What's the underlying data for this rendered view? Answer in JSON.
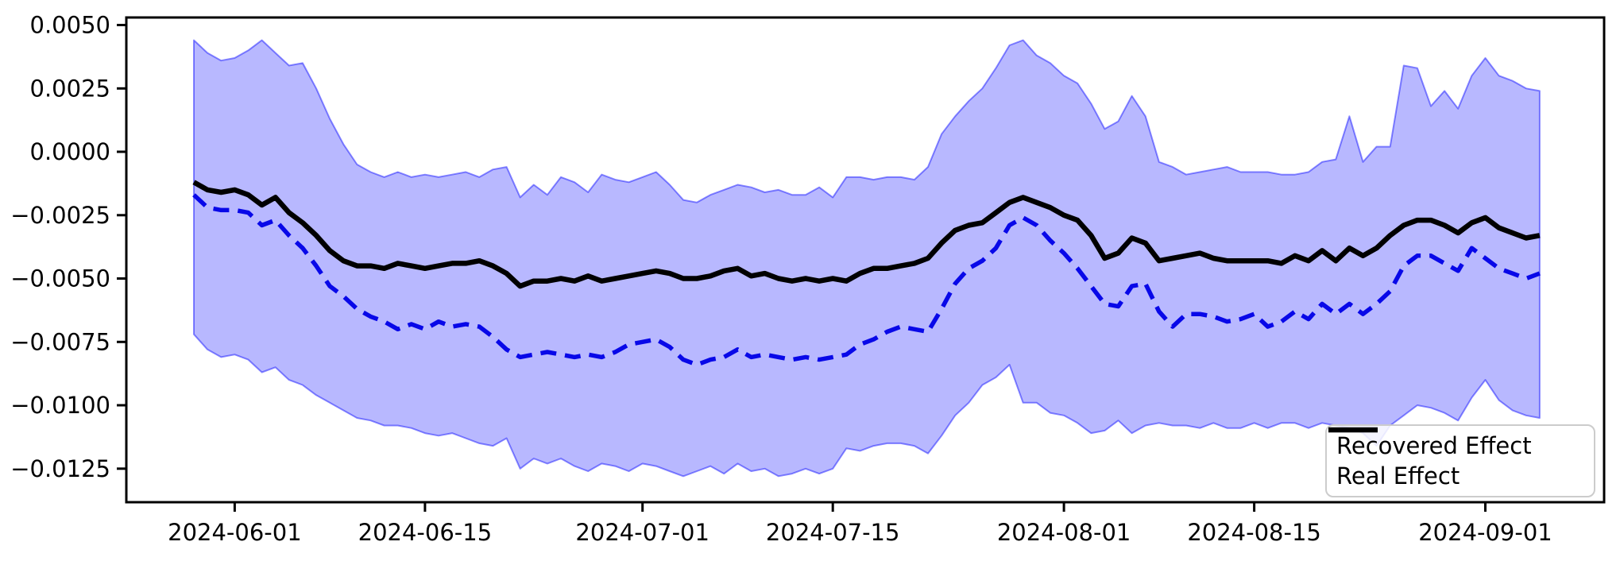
{
  "figure": {
    "background": "#ffffff"
  },
  "axes": {
    "spine_color": "#000000",
    "spine_width": 3,
    "tick_length": 12,
    "tick_width": 3,
    "font_color": "#000000",
    "tick_font_size": 29,
    "ylim": [
      -0.013824,
      0.005298
    ],
    "xlim_days": [
      -4.97,
      103.74
    ],
    "y_ticks": [
      {
        "value": 0.005,
        "label": "0.0050"
      },
      {
        "value": 0.0025,
        "label": "0.0025"
      },
      {
        "value": 0.0,
        "label": "0.0000"
      },
      {
        "value": -0.0025,
        "label": "−0.0025"
      },
      {
        "value": -0.005,
        "label": "−0.0050"
      },
      {
        "value": -0.0075,
        "label": "−0.0075"
      },
      {
        "value": -0.01,
        "label": "−0.0100"
      },
      {
        "value": -0.0125,
        "label": "−0.0125"
      }
    ],
    "x_ticks": [
      {
        "day": 3,
        "label": "2024-06-01"
      },
      {
        "day": 17,
        "label": "2024-06-15"
      },
      {
        "day": 33,
        "label": "2024-07-01"
      },
      {
        "day": 47,
        "label": "2024-07-15"
      },
      {
        "day": 64,
        "label": "2024-08-01"
      },
      {
        "day": 78,
        "label": "2024-08-15"
      },
      {
        "day": 95,
        "label": "2024-09-01"
      }
    ]
  },
  "chart_data": {
    "type": "line",
    "title": "",
    "xlabel": "",
    "ylabel": "",
    "grid": false,
    "legend_position": "lower right",
    "x_start_date": "2024-05-29",
    "x_end_date": "2024-09-05",
    "x_frequency": "daily",
    "n_points": 100,
    "value_scale": 0.0001,
    "series": [
      {
        "name": "Recovered Effect",
        "color": "#0808e8",
        "line_style": "dashed",
        "line_width": 5.5,
        "dash_array": "20 11",
        "values_e4": [
          -17,
          -22,
          -23,
          -23,
          -24,
          -29,
          -27,
          -33,
          -38,
          -45,
          -53,
          -57,
          -62,
          -65,
          -67,
          -70,
          -68,
          -70,
          -67,
          -69,
          -68,
          -69,
          -73,
          -78,
          -81,
          -80,
          -79,
          -80,
          -81,
          -80,
          -81,
          -79,
          -76,
          -75,
          -74,
          -77,
          -82,
          -84,
          -82,
          -81,
          -78,
          -81,
          -80,
          -81,
          -82,
          -81,
          -82,
          -81,
          -80,
          -76,
          -74,
          -71,
          -69,
          -70,
          -71,
          -62,
          -52,
          -46,
          -43,
          -38,
          -29,
          -26,
          -29,
          -35,
          -40,
          -46,
          -53,
          -60,
          -61,
          -53,
          -52,
          -63,
          -69,
          -64,
          -64,
          -65,
          -67,
          -66,
          -64,
          -69,
          -67,
          -63,
          -66,
          -60,
          -64,
          -60,
          -64,
          -60,
          -55,
          -45,
          -41,
          -41,
          -44,
          -47,
          -38,
          -42,
          -46,
          -48,
          -50,
          -48
        ]
      },
      {
        "name": "Real Effect",
        "color": "#000000",
        "line_style": "solid",
        "line_width": 6.5,
        "dash_array": "",
        "values_e4": [
          -12,
          -15,
          -16,
          -15,
          -17,
          -21,
          -18,
          -24,
          -28,
          -33,
          -39,
          -43,
          -45,
          -45,
          -46,
          -44,
          -45,
          -46,
          -45,
          -44,
          -44,
          -43,
          -45,
          -48,
          -53,
          -51,
          -51,
          -50,
          -51,
          -49,
          -51,
          -50,
          -49,
          -48,
          -47,
          -48,
          -50,
          -50,
          -49,
          -47,
          -46,
          -49,
          -48,
          -50,
          -51,
          -50,
          -51,
          -50,
          -51,
          -48,
          -46,
          -46,
          -45,
          -44,
          -42,
          -36,
          -31,
          -29,
          -28,
          -24,
          -20,
          -18,
          -20,
          -22,
          -25,
          -27,
          -33,
          -42,
          -40,
          -34,
          -36,
          -43,
          -42,
          -41,
          -40,
          -42,
          -43,
          -43,
          -43,
          -43,
          -44,
          -41,
          -43,
          -39,
          -43,
          -38,
          -41,
          -38,
          -33,
          -29,
          -27,
          -27,
          -29,
          -32,
          -28,
          -26,
          -30,
          -32,
          -34,
          -33
        ]
      }
    ],
    "band": {
      "name": "confidence-band",
      "fill_color": "rgba(0,0,255,0.28)",
      "edge_color": "rgba(0,0,255,0.45)",
      "edge_width": 2,
      "upper_e4": [
        44,
        39,
        36,
        37,
        40,
        44,
        39,
        34,
        35,
        25,
        13,
        3,
        -5,
        -8,
        -10,
        -8,
        -10,
        -9,
        -10,
        -9,
        -8,
        -10,
        -7,
        -6,
        -18,
        -13,
        -17,
        -10,
        -12,
        -16,
        -9,
        -11,
        -12,
        -10,
        -8,
        -13,
        -19,
        -20,
        -17,
        -15,
        -13,
        -14,
        -16,
        -15,
        -17,
        -17,
        -14,
        -18,
        -10,
        -10,
        -11,
        -10,
        -10,
        -11,
        -6,
        7,
        14,
        20,
        25,
        33,
        42,
        44,
        38,
        35,
        30,
        27,
        19,
        9,
        12,
        22,
        14,
        -4,
        -6,
        -9,
        -8,
        -7,
        -6,
        -8,
        -8,
        -8,
        -9,
        -9,
        -8,
        -4,
        -3,
        14,
        -4,
        2,
        2,
        34,
        33,
        18,
        24,
        17,
        30,
        37,
        30,
        28,
        25,
        24
      ],
      "lower_e4": [
        -72,
        -78,
        -81,
        -80,
        -82,
        -87,
        -85,
        -90,
        -92,
        -96,
        -99,
        -102,
        -105,
        -106,
        -108,
        -108,
        -109,
        -111,
        -112,
        -111,
        -113,
        -115,
        -116,
        -113,
        -125,
        -121,
        -123,
        -121,
        -124,
        -126,
        -123,
        -124,
        -126,
        -123,
        -124,
        -126,
        -128,
        -126,
        -124,
        -127,
        -123,
        -126,
        -125,
        -128,
        -127,
        -125,
        -127,
        -125,
        -117,
        -118,
        -116,
        -115,
        -115,
        -116,
        -119,
        -112,
        -104,
        -99,
        -92,
        -89,
        -84,
        -99,
        -99,
        -103,
        -104,
        -107,
        -111,
        -110,
        -106,
        -111,
        -108,
        -107,
        -108,
        -108,
        -109,
        -107,
        -109,
        -109,
        -107,
        -109,
        -107,
        -107,
        -109,
        -107,
        -108,
        -109,
        -111,
        -116,
        -108,
        -104,
        -100,
        -101,
        -103,
        -106,
        -97,
        -90,
        -98,
        -102,
        -104,
        -105
      ]
    }
  },
  "legend": {
    "entries": [
      {
        "label": "Recovered Effect",
        "color": "#0808e8",
        "dash": "14 8",
        "width": 5.5
      },
      {
        "label": "Real Effect",
        "color": "#000000",
        "dash": "",
        "width": 6.5
      }
    ]
  }
}
